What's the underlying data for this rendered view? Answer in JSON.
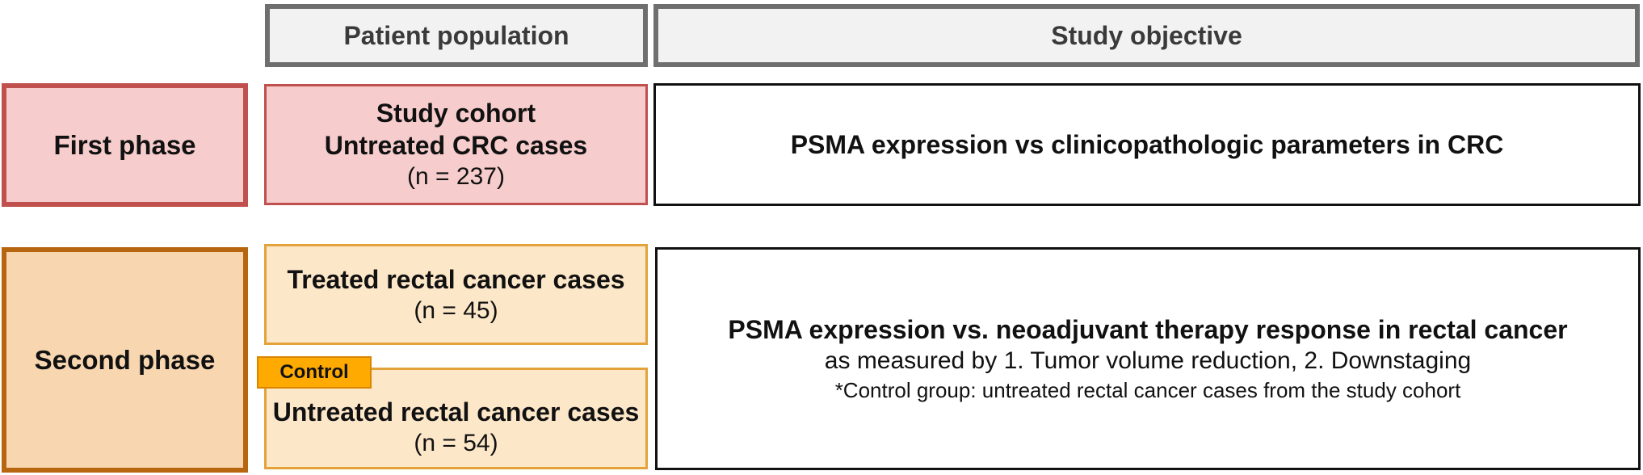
{
  "headers": {
    "population": "Patient population",
    "objective": "Study objective"
  },
  "first_phase": {
    "label": "First phase",
    "cohort_title_1": "Study cohort",
    "cohort_title_2": "Untreated CRC cases",
    "cohort_n": "(n = 237)",
    "objective": "PSMA expression vs clinicopathologic parameters in CRC"
  },
  "second_phase": {
    "label": "Second phase",
    "treated_title": "Treated rectal cancer cases",
    "treated_n": "(n = 45)",
    "control_tag": "Control",
    "untreated_title": "Untreated rectal cancer cases",
    "untreated_n": "(n = 54)",
    "objective_title": "PSMA expression vs. neoadjuvant therapy response in rectal cancer",
    "objective_measure": "as measured by 1. Tumor volume reduction, 2. Downstaging",
    "objective_note": "*Control group: untreated rectal cancer cases from the study cohort"
  },
  "colors": {
    "header_border": "#6f6f6f",
    "header_fill": "#f2f2f2",
    "phase1_border": "#c0504d",
    "phase1_fill": "#f6cccc",
    "phase2_border": "#b8650f",
    "phase2_fill": "#f8d7b0",
    "phase2_cohort_border": "#e3a33a",
    "phase2_cohort_fill": "#fde7c9",
    "control_tag": "#ffaa00"
  }
}
